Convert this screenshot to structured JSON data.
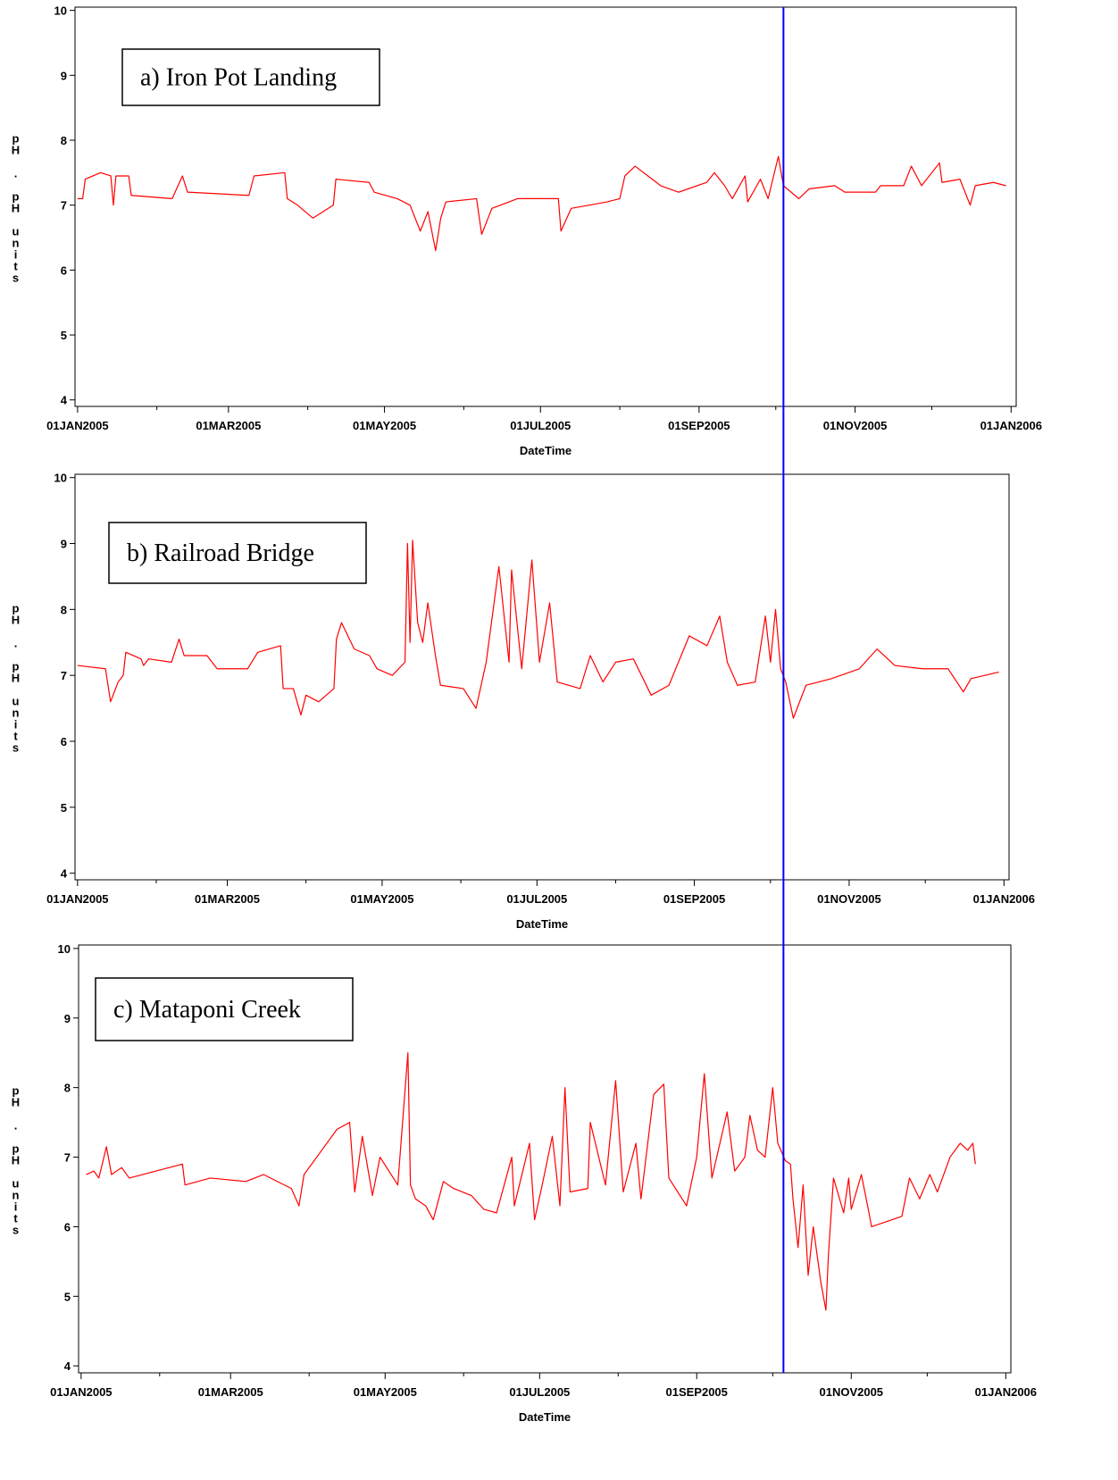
{
  "chart_data": [
    {
      "type": "line",
      "annotation": "a) Iron Pot Landing",
      "xlabel": "DateTime",
      "ylabel": "pH . pH units",
      "color": "#ff0000",
      "xlim": [
        "2004-12-31",
        "2006-01-03"
      ],
      "ylim": [
        3.9,
        10.05
      ],
      "xticks": [
        {
          "value": "2005-01-01",
          "label": "01JAN2005"
        },
        {
          "value": "2005-03-01",
          "label": "01MAR2005"
        },
        {
          "value": "2005-05-01",
          "label": "01MAY2005"
        },
        {
          "value": "2005-07-01",
          "label": "01JUL2005"
        },
        {
          "value": "2005-09-01",
          "label": "01SEP2005"
        },
        {
          "value": "2005-11-01",
          "label": "01NOV2005"
        },
        {
          "value": "2006-01-01",
          "label": "01JAN2006"
        }
      ],
      "xminor_ticks": [
        "2005-02-01",
        "2005-04-01",
        "2005-06-01",
        "2005-08-01",
        "2005-10-01",
        "2005-12-01"
      ],
      "yticks": [
        4,
        5,
        6,
        7,
        8,
        9,
        10
      ],
      "x": [
        "2005-01-01",
        "2005-01-03",
        "2005-01-04",
        "2005-01-10",
        "2005-01-14",
        "2005-01-15",
        "2005-01-16",
        "2005-01-21",
        "2005-01-22",
        "2005-02-07",
        "2005-02-11",
        "2005-02-13",
        "2005-03-09",
        "2005-03-11",
        "2005-03-23",
        "2005-03-24",
        "2005-03-28",
        "2005-04-03",
        "2005-04-11",
        "2005-04-12",
        "2005-04-25",
        "2005-04-27",
        "2005-05-06",
        "2005-05-11",
        "2005-05-15",
        "2005-05-18",
        "2005-05-21",
        "2005-05-23",
        "2005-05-25",
        "2005-06-06",
        "2005-06-08",
        "2005-06-12",
        "2005-06-22",
        "2005-07-08",
        "2005-07-09",
        "2005-07-13",
        "2005-07-27",
        "2005-08-01",
        "2005-08-03",
        "2005-08-07",
        "2005-08-17",
        "2005-08-24",
        "2005-09-04",
        "2005-09-07",
        "2005-09-11",
        "2005-09-14",
        "2005-09-19",
        "2005-09-20",
        "2005-09-25",
        "2005-09-28",
        "2005-10-02",
        "2005-10-04",
        "2005-10-10",
        "2005-10-14",
        "2005-10-24",
        "2005-10-28",
        "2005-11-09",
        "2005-11-11",
        "2005-11-20",
        "2005-11-23",
        "2005-11-27",
        "2005-12-04",
        "2005-12-05",
        "2005-12-12",
        "2005-12-16",
        "2005-12-18",
        "2005-12-25",
        "2005-12-30"
      ],
      "values": [
        7.1,
        7.1,
        7.4,
        7.5,
        7.45,
        7.0,
        7.45,
        7.45,
        7.15,
        7.1,
        7.45,
        7.2,
        7.15,
        7.45,
        7.5,
        7.1,
        7.0,
        6.8,
        7.0,
        7.4,
        7.35,
        7.2,
        7.1,
        7.0,
        6.6,
        6.9,
        6.3,
        6.8,
        7.05,
        7.1,
        6.55,
        6.95,
        7.1,
        7.1,
        6.6,
        6.95,
        7.05,
        7.1,
        7.45,
        7.6,
        7.3,
        7.2,
        7.35,
        7.5,
        7.3,
        7.1,
        7.45,
        7.05,
        7.4,
        7.1,
        7.75,
        7.3,
        7.1,
        7.25,
        7.3,
        7.2,
        7.2,
        7.3,
        7.3,
        7.6,
        7.3,
        7.65,
        7.35,
        7.4,
        7.0,
        7.3,
        7.35,
        7.3
      ]
    },
    {
      "type": "line",
      "annotation": "b) Railroad Bridge",
      "xlabel": "DateTime",
      "ylabel": "pH . pH units",
      "color": "#ff0000",
      "xlim": [
        "2004-12-31",
        "2006-01-03"
      ],
      "ylim": [
        3.9,
        10.05
      ],
      "xticks": [
        {
          "value": "2005-01-01",
          "label": "01JAN2005"
        },
        {
          "value": "2005-03-01",
          "label": "01MAR2005"
        },
        {
          "value": "2005-05-01",
          "label": "01MAY2005"
        },
        {
          "value": "2005-07-01",
          "label": "01JUL2005"
        },
        {
          "value": "2005-09-01",
          "label": "01SEP2005"
        },
        {
          "value": "2005-11-01",
          "label": "01NOV2005"
        },
        {
          "value": "2006-01-01",
          "label": "01JAN2006"
        }
      ],
      "xminor_ticks": [
        "2005-02-01",
        "2005-04-01",
        "2005-06-01",
        "2005-08-01",
        "2005-10-01",
        "2005-12-01"
      ],
      "yticks": [
        4,
        5,
        6,
        7,
        8,
        9,
        10
      ],
      "x": [
        "2005-01-01",
        "2005-01-12",
        "2005-01-14",
        "2005-01-17",
        "2005-01-19",
        "2005-01-20",
        "2005-01-26",
        "2005-01-27",
        "2005-01-29",
        "2005-02-07",
        "2005-02-10",
        "2005-02-12",
        "2005-02-21",
        "2005-02-25",
        "2005-03-09",
        "2005-03-13",
        "2005-03-22",
        "2005-03-23",
        "2005-03-27",
        "2005-03-30",
        "2005-04-01",
        "2005-04-06",
        "2005-04-12",
        "2005-04-13",
        "2005-04-15",
        "2005-04-20",
        "2005-04-26",
        "2005-04-29",
        "2005-05-05",
        "2005-05-10",
        "2005-05-11",
        "2005-05-12",
        "2005-05-13",
        "2005-05-15",
        "2005-05-17",
        "2005-05-19",
        "2005-05-22",
        "2005-05-24",
        "2005-06-02",
        "2005-06-07",
        "2005-06-11",
        "2005-06-16",
        "2005-06-20",
        "2005-06-21",
        "2005-06-25",
        "2005-06-29",
        "2005-07-02",
        "2005-07-06",
        "2005-07-09",
        "2005-07-18",
        "2005-07-22",
        "2005-07-27",
        "2005-08-01",
        "2005-08-08",
        "2005-08-15",
        "2005-08-22",
        "2005-08-30",
        "2005-09-06",
        "2005-09-11",
        "2005-09-14",
        "2005-09-18",
        "2005-09-25",
        "2005-09-29",
        "2005-10-01",
        "2005-10-03",
        "2005-10-05",
        "2005-10-07",
        "2005-10-10",
        "2005-10-15",
        "2005-10-25",
        "2005-11-05",
        "2005-11-12",
        "2005-11-19",
        "2005-11-30",
        "2005-12-10",
        "2005-12-16",
        "2005-12-19",
        "2005-12-30"
      ],
      "values": [
        7.15,
        7.1,
        6.6,
        6.9,
        7.0,
        7.35,
        7.25,
        7.15,
        7.25,
        7.2,
        7.55,
        7.3,
        7.3,
        7.1,
        7.1,
        7.35,
        7.45,
        6.8,
        6.8,
        6.4,
        6.7,
        6.6,
        6.8,
        7.55,
        7.8,
        7.4,
        7.3,
        7.1,
        7.0,
        7.2,
        9.0,
        7.5,
        9.05,
        7.8,
        7.5,
        8.1,
        7.3,
        6.85,
        6.8,
        6.5,
        7.2,
        8.65,
        7.2,
        8.6,
        7.1,
        8.75,
        7.2,
        8.1,
        6.9,
        6.8,
        7.3,
        6.9,
        7.2,
        7.25,
        6.7,
        6.85,
        7.6,
        7.45,
        7.9,
        7.2,
        6.85,
        6.9,
        7.9,
        7.2,
        8.0,
        7.1,
        6.9,
        6.35,
        6.85,
        6.95,
        7.1,
        7.4,
        7.15,
        7.1,
        7.1,
        6.75,
        6.95,
        7.05
      ]
    },
    {
      "type": "line",
      "annotation": "c) Mataponi Creek",
      "xlabel": "DateTime",
      "ylabel": "pH . pH units",
      "color": "#ff0000",
      "xlim": [
        "2004-12-31",
        "2006-01-03"
      ],
      "ylim": [
        3.9,
        10.05
      ],
      "xticks": [
        {
          "value": "2005-01-01",
          "label": "01JAN2005"
        },
        {
          "value": "2005-03-01",
          "label": "01MAR2005"
        },
        {
          "value": "2005-05-01",
          "label": "01MAY2005"
        },
        {
          "value": "2005-07-01",
          "label": "01JUL2005"
        },
        {
          "value": "2005-09-01",
          "label": "01SEP2005"
        },
        {
          "value": "2005-11-01",
          "label": "01NOV2005"
        },
        {
          "value": "2006-01-01",
          "label": "01JAN2006"
        }
      ],
      "xminor_ticks": [
        "2005-02-01",
        "2005-04-01",
        "2005-06-01",
        "2005-08-01",
        "2005-10-01",
        "2005-12-01"
      ],
      "yticks": [
        4,
        5,
        6,
        7,
        8,
        9,
        10
      ],
      "x": [
        "2005-01-03",
        "2005-01-06",
        "2005-01-08",
        "2005-01-11",
        "2005-01-13",
        "2005-01-17",
        "2005-01-20",
        "2005-02-10",
        "2005-02-11",
        "2005-02-21",
        "2005-03-07",
        "2005-03-14",
        "2005-03-25",
        "2005-03-28",
        "2005-03-30",
        "2005-04-04",
        "2005-04-12",
        "2005-04-17",
        "2005-04-19",
        "2005-04-22",
        "2005-04-26",
        "2005-04-29",
        "2005-05-06",
        "2005-05-10",
        "2005-05-11",
        "2005-05-13",
        "2005-05-17",
        "2005-05-20",
        "2005-05-24",
        "2005-05-28",
        "2005-06-04",
        "2005-06-09",
        "2005-06-14",
        "2005-06-20",
        "2005-06-21",
        "2005-06-27",
        "2005-06-29",
        "2005-07-02",
        "2005-07-06",
        "2005-07-09",
        "2005-07-11",
        "2005-07-13",
        "2005-07-20",
        "2005-07-21",
        "2005-07-27",
        "2005-07-31",
        "2005-08-03",
        "2005-08-08",
        "2005-08-10",
        "2005-08-15",
        "2005-08-19",
        "2005-08-21",
        "2005-08-28",
        "2005-09-01",
        "2005-09-04",
        "2005-09-07",
        "2005-09-13",
        "2005-09-16",
        "2005-09-20",
        "2005-09-22",
        "2005-09-25",
        "2005-09-28",
        "2005-10-01",
        "2005-10-03",
        "2005-10-06",
        "2005-10-08",
        "2005-10-09",
        "2005-10-11",
        "2005-10-13",
        "2005-10-15",
        "2005-10-17",
        "2005-10-20",
        "2005-10-22",
        "2005-10-23",
        "2005-10-25",
        "2005-10-29",
        "2005-10-31",
        "2005-11-01",
        "2005-11-05",
        "2005-11-08",
        "2005-11-09",
        "2005-11-21",
        "2005-11-24",
        "2005-11-28",
        "2005-12-02",
        "2005-12-05",
        "2005-12-09",
        "2005-12-10",
        "2005-12-14",
        "2005-12-17",
        "2005-12-19",
        "2005-12-20"
      ],
      "values": [
        6.75,
        6.8,
        6.7,
        7.15,
        6.75,
        6.85,
        6.7,
        6.9,
        6.6,
        6.7,
        6.65,
        6.75,
        6.55,
        6.3,
        6.75,
        7.0,
        7.4,
        7.5,
        6.5,
        7.3,
        6.45,
        7.0,
        6.6,
        8.5,
        6.6,
        6.4,
        6.3,
        6.1,
        6.65,
        6.55,
        6.45,
        6.25,
        6.2,
        7.0,
        6.3,
        7.2,
        6.1,
        6.6,
        7.3,
        6.3,
        8.0,
        6.5,
        6.55,
        7.5,
        6.6,
        8.1,
        6.5,
        7.2,
        6.4,
        7.9,
        8.05,
        6.7,
        6.3,
        7.0,
        8.2,
        6.7,
        7.65,
        6.8,
        7.0,
        7.6,
        7.1,
        7.0,
        8.0,
        7.2,
        6.95,
        6.9,
        6.4,
        5.7,
        6.6,
        5.3,
        6.0,
        5.2,
        4.8,
        5.6,
        6.7,
        6.2,
        6.7,
        6.25,
        6.75,
        6.2,
        6.0,
        6.15,
        6.7,
        6.4,
        6.75,
        6.5,
        6.9,
        7.0,
        7.2,
        7.1,
        7.2,
        6.9
      ]
    }
  ],
  "reference_line": {
    "x": "2005-10-04",
    "color": "#0000ff"
  }
}
